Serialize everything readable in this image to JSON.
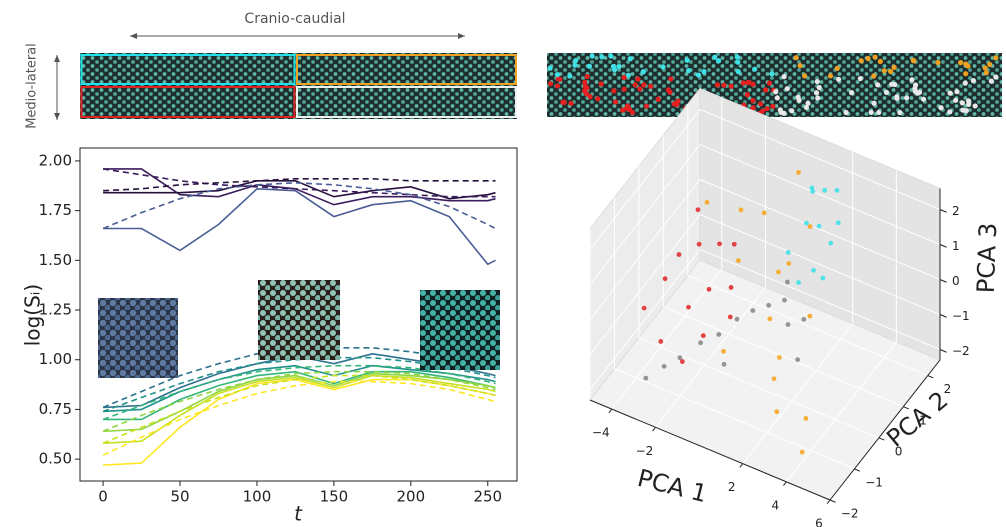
{
  "annotations": {
    "horizontal": "Cranio-caudial",
    "vertical": "Medio-lateral"
  },
  "chart_data": [
    {
      "type": "line",
      "xlabel": "t",
      "ylabel": "log(Sᵢ)",
      "x": [
        0,
        25,
        50,
        75,
        100,
        125,
        150,
        175,
        200,
        225,
        250,
        255
      ],
      "xlim": [
        -15,
        269
      ],
      "xticks": [
        0,
        50,
        100,
        150,
        200,
        250
      ],
      "ylim": [
        0.39,
        2.065
      ],
      "yticks": [
        {
          "value": 0.5,
          "label": "0.50"
        },
        0.75,
        {
          "value": 1.0,
          "label": "1.00"
        },
        1.25,
        {
          "value": 1.5,
          "label": "1.50"
        },
        1.75,
        {
          "value": 2.0,
          "label": "2.00"
        }
      ],
      "series": [
        {
          "color": "#3b1d5e",
          "dashed": false,
          "values": [
            1.96,
            1.96,
            1.83,
            1.82,
            1.88,
            1.86,
            1.78,
            1.82,
            1.82,
            1.8,
            1.8,
            1.81
          ]
        },
        {
          "color": "#26103d",
          "dashed": false,
          "values": [
            1.84,
            1.84,
            1.84,
            1.85,
            1.9,
            1.9,
            1.82,
            1.85,
            1.87,
            1.81,
            1.83,
            1.84
          ]
        },
        {
          "color": "#4a5d95",
          "dashed": false,
          "values": [
            1.66,
            1.66,
            1.55,
            1.68,
            1.86,
            1.85,
            1.72,
            1.78,
            1.8,
            1.72,
            1.48,
            1.5
          ]
        },
        {
          "color": "#3b1d5e",
          "dashed": true,
          "values": [
            1.96,
            1.93,
            1.9,
            1.88,
            1.87,
            1.86,
            1.85,
            1.84,
            1.83,
            1.82,
            1.82,
            1.82
          ]
        },
        {
          "color": "#26103d",
          "dashed": true,
          "values": [
            1.85,
            1.86,
            1.88,
            1.89,
            1.9,
            1.91,
            1.91,
            1.91,
            1.9,
            1.9,
            1.9,
            1.9
          ]
        },
        {
          "color": "#4a5d95",
          "dashed": true,
          "values": [
            1.66,
            1.74,
            1.81,
            1.86,
            1.88,
            1.89,
            1.88,
            1.86,
            1.83,
            1.77,
            1.68,
            1.66
          ]
        },
        {
          "color": "#2c728e",
          "dashed": false,
          "values": [
            0.76,
            0.77,
            0.86,
            0.93,
            0.98,
            1.02,
            0.98,
            1.03,
            1.0,
            0.97,
            0.93,
            0.92
          ]
        },
        {
          "color": "#21918c",
          "dashed": false,
          "values": [
            0.74,
            0.75,
            0.84,
            0.9,
            0.95,
            0.97,
            0.92,
            0.97,
            0.95,
            0.93,
            0.9,
            0.89
          ]
        },
        {
          "color": "#35b779",
          "dashed": false,
          "values": [
            0.7,
            0.7,
            0.8,
            0.87,
            0.92,
            0.94,
            0.88,
            0.94,
            0.94,
            0.91,
            0.87,
            0.86
          ]
        },
        {
          "color": "#90d743",
          "dashed": false,
          "values": [
            0.64,
            0.65,
            0.74,
            0.84,
            0.9,
            0.92,
            0.87,
            0.93,
            0.92,
            0.9,
            0.87,
            0.86
          ]
        },
        {
          "color": "#c8e020",
          "dashed": false,
          "values": [
            0.58,
            0.59,
            0.72,
            0.83,
            0.89,
            0.91,
            0.86,
            0.92,
            0.91,
            0.88,
            0.85,
            0.84
          ]
        },
        {
          "color": "#fde725",
          "dashed": false,
          "values": [
            0.47,
            0.48,
            0.66,
            0.8,
            0.88,
            0.9,
            0.85,
            0.9,
            0.9,
            0.87,
            0.83,
            0.82
          ]
        },
        {
          "color": "#2c728e",
          "dashed": true,
          "values": [
            0.76,
            0.84,
            0.92,
            0.98,
            1.03,
            1.05,
            1.06,
            1.06,
            1.04,
            1.01,
            0.97,
            0.96
          ]
        },
        {
          "color": "#21918c",
          "dashed": true,
          "values": [
            0.74,
            0.81,
            0.88,
            0.94,
            0.98,
            1.0,
            1.01,
            1.01,
            0.99,
            0.96,
            0.92,
            0.91
          ]
        },
        {
          "color": "#35b779",
          "dashed": true,
          "values": [
            0.7,
            0.77,
            0.84,
            0.9,
            0.94,
            0.96,
            0.97,
            0.97,
            0.96,
            0.93,
            0.89,
            0.88
          ]
        },
        {
          "color": "#90d743",
          "dashed": true,
          "values": [
            0.64,
            0.72,
            0.79,
            0.85,
            0.9,
            0.93,
            0.94,
            0.94,
            0.93,
            0.9,
            0.86,
            0.85
          ]
        },
        {
          "color": "#c8e020",
          "dashed": true,
          "values": [
            0.58,
            0.66,
            0.74,
            0.81,
            0.87,
            0.9,
            0.92,
            0.92,
            0.9,
            0.87,
            0.83,
            0.82
          ]
        },
        {
          "color": "#fde725",
          "dashed": true,
          "values": [
            0.52,
            0.61,
            0.7,
            0.77,
            0.83,
            0.87,
            0.89,
            0.89,
            0.88,
            0.85,
            0.8,
            0.79
          ]
        }
      ]
    },
    {
      "type": "scatter3d",
      "xlabel": "PCA 1",
      "ylabel": "PCA 2",
      "zlabel": "PCA 3",
      "xlim": [
        -5,
        6
      ],
      "ylim": [
        -2,
        2.5
      ],
      "zlim": [
        -2.3,
        2.6
      ],
      "xticks": [
        {
          "value": -4,
          "label": "−4"
        },
        {
          "value": -2,
          "label": "−2"
        },
        2,
        4,
        6
      ],
      "yticks": [
        {
          "value": -2,
          "label": "−2"
        },
        {
          "value": -1,
          "label": "−1"
        },
        0,
        1,
        2
      ],
      "zticks": [
        {
          "value": -2,
          "label": "−2"
        },
        {
          "value": -1,
          "label": "−1"
        },
        0,
        1,
        2
      ],
      "series": [
        {
          "color": "#8a8a8a",
          "x": [
            -3,
            -2.5,
            -2,
            -1.5,
            -1,
            -0.5,
            0,
            0.5,
            1,
            1.5,
            2,
            -0.2,
            0.8,
            2.5
          ],
          "y": [
            -1.5,
            -1.2,
            -1,
            -0.6,
            -0.3,
            0,
            0.2,
            0.4,
            0.6,
            0.3,
            0.5,
            -0.8,
            0.9,
            -0.2
          ],
          "z": [
            -1.6,
            -1.4,
            -1.2,
            -1.0,
            -0.9,
            -0.6,
            -0.4,
            -0.3,
            -0.2,
            -0.5,
            -0.4,
            -1.1,
            0,
            -0.8
          ]
        },
        {
          "color": "#e03030",
          "x": [
            -4.2,
            -3.8,
            -3.5,
            -3.1,
            -2.8,
            -2.5,
            -2.2,
            -1.9,
            -1.6,
            -1.3,
            -1,
            -0.7,
            -3.3,
            -2.0
          ],
          "y": [
            -0.5,
            0,
            0.3,
            -0.8,
            0.5,
            -0.2,
            0.8,
            0.1,
            -0.4,
            0.6,
            0.2,
            -0.1,
            0.9,
            -0.9
          ],
          "z": [
            -0.8,
            -0.3,
            0.2,
            -1.2,
            0.5,
            -0.6,
            0.4,
            -0.2,
            -1.0,
            0.8,
            0.0,
            -0.5,
            1.0,
            -1.4
          ]
        },
        {
          "color": "#f5a623",
          "x": [
            -3,
            -2,
            -1,
            0,
            0.5,
            1,
            1.5,
            2,
            2.5,
            3,
            4,
            4.5,
            -1.5,
            1.2,
            0.3,
            2.2
          ],
          "y": [
            1,
            1.5,
            0.5,
            -1,
            0.8,
            0,
            1.2,
            -0.5,
            0.3,
            -1.5,
            -1.2,
            -1.8,
            2,
            0.6,
            1.8,
            -0.9
          ],
          "z": [
            1.2,
            0.8,
            0.5,
            -0.5,
            0.3,
            -0.2,
            1.5,
            -0.6,
            0.0,
            -1.0,
            -1.2,
            -1.5,
            0.4,
            0.9,
            2.2,
            -0.8
          ]
        },
        {
          "color": "#40e0e8",
          "x": [
            0.5,
            1,
            1.2,
            1.5,
            1.8,
            2,
            2.2,
            0.8,
            1.4,
            1.9,
            1.1,
            2.4
          ],
          "y": [
            1.2,
            1.5,
            1.0,
            1.8,
            1.3,
            1.6,
            1.1,
            1.9,
            1.4,
            2.0,
            1.7,
            1.5
          ],
          "z": [
            0.5,
            1.2,
            0.0,
            2.0,
            1.5,
            0.8,
            0.3,
            1.8,
            2.3,
            1.0,
            -0.3,
            2.5
          ]
        }
      ]
    }
  ]
}
